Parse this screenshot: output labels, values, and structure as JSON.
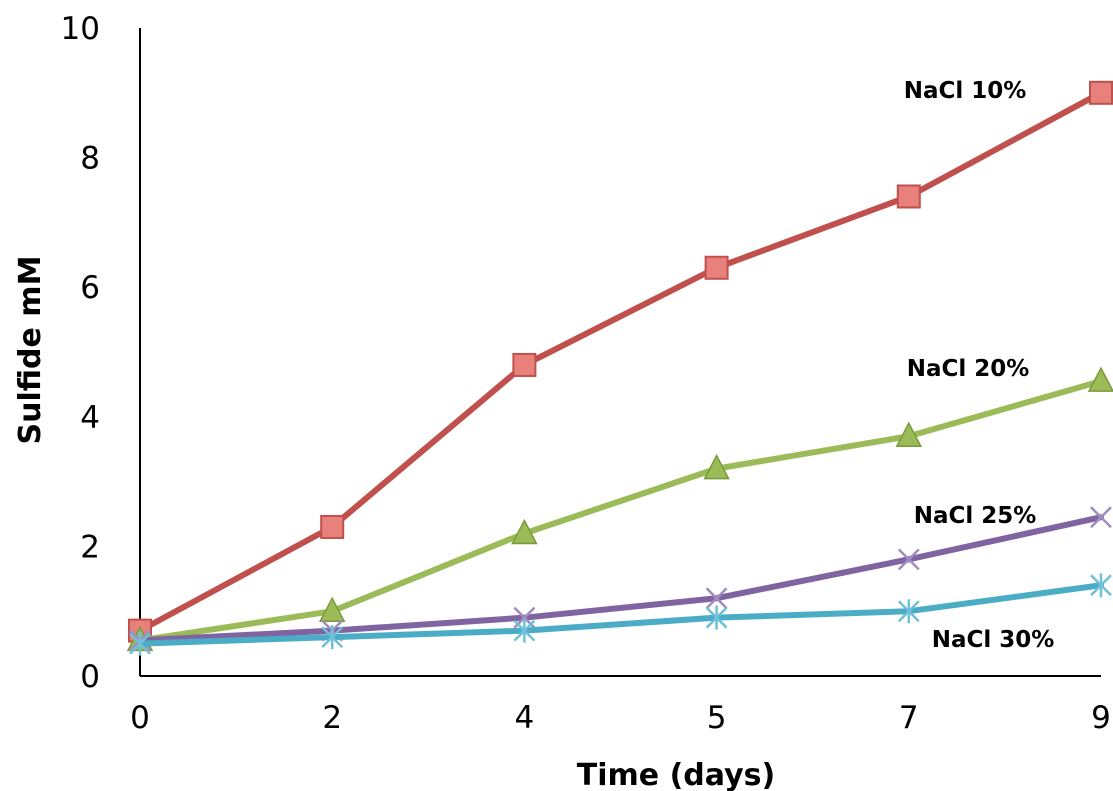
{
  "chart_data": {
    "type": "line",
    "title": "",
    "xlabel": "Time (days)",
    "ylabel": "Sulfide mM",
    "categories": [
      "0",
      "2",
      "4",
      "5",
      "7",
      "9"
    ],
    "ylim": [
      0,
      10
    ],
    "yticks": [
      "0",
      "2",
      "4",
      "6",
      "8",
      "10"
    ],
    "grid": false,
    "legend": "none",
    "series": [
      {
        "name": "NaCl 10%",
        "marker": "square",
        "color": "#c0504d",
        "marker_color": "#e8807c",
        "values": [
          0.7,
          2.3,
          4.8,
          6.3,
          7.4,
          9.0
        ]
      },
      {
        "name": "NaCl 20%",
        "marker": "triangle",
        "color": "#9bbb59",
        "marker_color": "#9bbb59",
        "values": [
          0.55,
          1.0,
          2.2,
          3.2,
          3.7,
          4.55
        ]
      },
      {
        "name": "NaCl 25%",
        "marker": "x",
        "color": "#8064a2",
        "marker_color": "#a08cc0",
        "values": [
          0.55,
          0.7,
          0.9,
          1.2,
          1.8,
          2.45
        ]
      },
      {
        "name": "NaCl 30%",
        "marker": "star",
        "color": "#4bacc6",
        "marker_color": "#6fc0d8",
        "values": [
          0.5,
          0.6,
          0.7,
          0.9,
          1.0,
          1.4
        ]
      }
    ]
  }
}
